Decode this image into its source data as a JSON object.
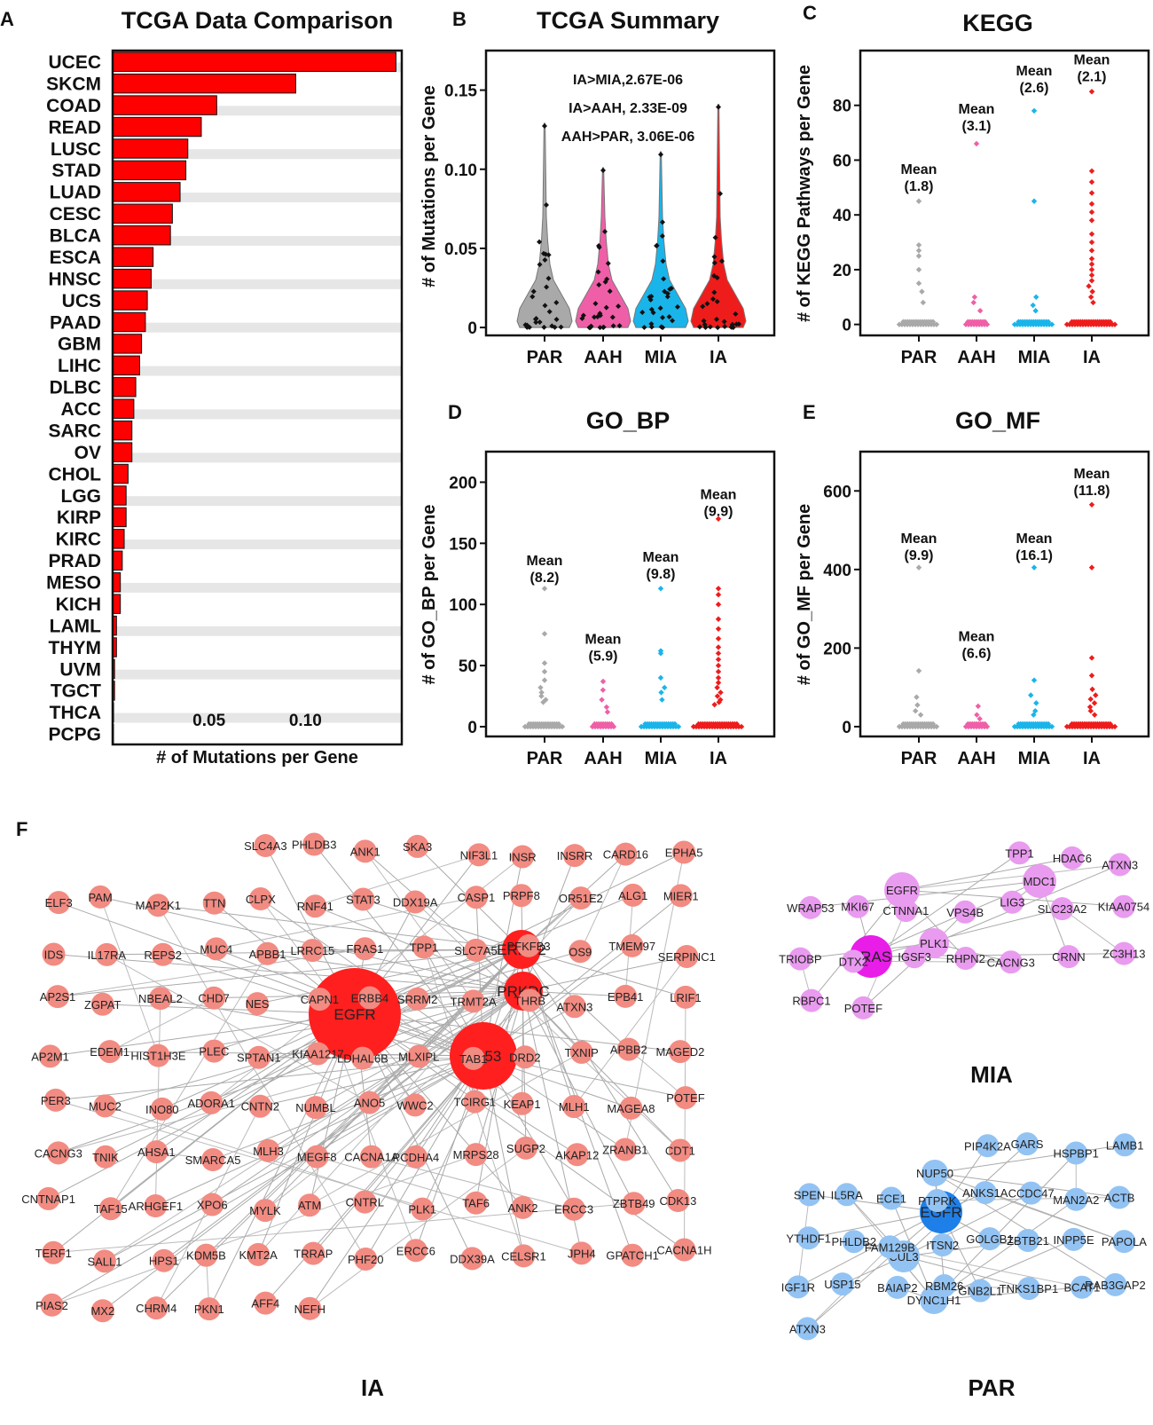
{
  "panel_labels": {
    "a": "A",
    "b": "B",
    "c": "C",
    "d": "D",
    "e": "E",
    "f": "F"
  },
  "group_colors": {
    "PAR": "#a9a9a9",
    "AAH": "#ef5fa7",
    "MIA": "#19b5ea",
    "IA": "#ef1c1c"
  },
  "chart_data": [
    {
      "id": "A",
      "type": "bar",
      "orientation": "horizontal",
      "title": "TCGA Data Comparison",
      "xlabel": "# of Mutations per Gene",
      "categories": [
        "UCEC",
        "SKCM",
        "COAD",
        "READ",
        "LUSC",
        "STAD",
        "LUAD",
        "CESC",
        "BLCA",
        "ESCA",
        "HNSC",
        "UCS",
        "PAAD",
        "GBM",
        "LIHC",
        "DLBC",
        "ACC",
        "SARC",
        "OV",
        "CHOL",
        "LGG",
        "KIRP",
        "KIRC",
        "PRAD",
        "MESO",
        "KICH",
        "LAML",
        "THYM",
        "UVM",
        "TGCT",
        "THCA",
        "PCPG"
      ],
      "values": [
        0.147,
        0.095,
        0.054,
        0.046,
        0.039,
        0.038,
        0.035,
        0.031,
        0.03,
        0.021,
        0.02,
        0.018,
        0.017,
        0.015,
        0.014,
        0.012,
        0.011,
        0.01,
        0.01,
        0.008,
        0.007,
        0.007,
        0.006,
        0.005,
        0.004,
        0.004,
        0.002,
        0.002,
        0.001,
        0.001,
        0.0005,
        0.0003
      ],
      "xticks": [
        0.05,
        0.1
      ],
      "xtick_labels": [
        "0.05",
        "0.10"
      ],
      "xlim": [
        0,
        0.15
      ],
      "bar_color": "#ff0000"
    },
    {
      "id": "B",
      "type": "violin",
      "title": "TCGA Summary",
      "ylabel": "# of Mutations per Gene",
      "categories": [
        "PAR",
        "AAH",
        "MIA",
        "IA"
      ],
      "yticks": [
        0,
        0.05,
        0.1,
        0.15
      ],
      "ytick_labels": [
        "0",
        "0.05",
        "0.10",
        "0.15"
      ],
      "ylim": [
        -0.005,
        0.175
      ],
      "max": [
        0.129,
        0.101,
        0.111,
        0.141
      ],
      "annotations": [
        "IA>MIA,2.67E-06",
        "IA>AAH, 2.33E-09",
        "AAH>PAR, 3.06E-06"
      ]
    },
    {
      "id": "C",
      "type": "scatter",
      "title": "KEGG",
      "ylabel": "# of KEGG Pathways per Gene",
      "categories": [
        "PAR",
        "AAH",
        "MIA",
        "IA"
      ],
      "yticks": [
        0,
        20,
        40,
        60,
        80
      ],
      "ytick_labels": [
        "0",
        "20",
        "40",
        "60",
        "80"
      ],
      "ylim": [
        -4,
        100
      ],
      "means": [
        {
          "label": "Mean",
          "value": "(1.8)"
        },
        {
          "label": "Mean",
          "value": "(3.1)"
        },
        {
          "label": "Mean",
          "value": "(2.6)"
        },
        {
          "label": "Mean",
          "value": "(2.1)"
        }
      ],
      "outliers": [
        [
          45,
          29,
          27,
          25,
          20,
          15,
          12,
          8
        ],
        [
          66,
          10,
          8,
          5
        ],
        [
          78,
          45,
          10,
          7,
          5
        ],
        [
          85,
          56,
          52,
          48,
          44,
          41,
          38,
          33,
          30,
          27,
          24,
          22,
          20,
          18,
          16,
          14,
          12,
          10,
          8
        ]
      ],
      "mean_label_pos": [
        55,
        77,
        91,
        95
      ]
    },
    {
      "id": "D",
      "type": "scatter",
      "title": "GO_BP",
      "ylabel": "# of GO_BP per Gene",
      "categories": [
        "PAR",
        "AAH",
        "MIA",
        "IA"
      ],
      "yticks": [
        0,
        50,
        100,
        150,
        200
      ],
      "ytick_labels": [
        "0",
        "50",
        "100",
        "150",
        "200"
      ],
      "ylim": [
        -8,
        225
      ],
      "means": [
        {
          "label": "Mean",
          "value": "(8.2)"
        },
        {
          "label": "Mean",
          "value": "(5.9)"
        },
        {
          "label": "Mean",
          "value": "(9.8)"
        },
        {
          "label": "Mean",
          "value": "(9.9)"
        }
      ],
      "outliers": [
        [
          113,
          76,
          52,
          45,
          38,
          32,
          28,
          25,
          22,
          20
        ],
        [
          37,
          30,
          22,
          16,
          12
        ],
        [
          113,
          62,
          60,
          40,
          32,
          28,
          22
        ],
        [
          170,
          113,
          108,
          100,
          88,
          80,
          72,
          65,
          60,
          55,
          50,
          45,
          40,
          36,
          32,
          28,
          25,
          22,
          20,
          18
        ]
      ],
      "mean_label_pos": [
        132,
        68,
        135,
        186
      ]
    },
    {
      "id": "E",
      "type": "scatter",
      "title": "GO_MF",
      "ylabel": "# of GO_MF per Gene",
      "categories": [
        "PAR",
        "AAH",
        "MIA",
        "IA"
      ],
      "yticks": [
        0,
        200,
        400,
        600
      ],
      "ytick_labels": [
        "0",
        "200",
        "400",
        "600"
      ],
      "ylim": [
        -25,
        700
      ],
      "means": [
        {
          "label": "Mean",
          "value": "(9.9)"
        },
        {
          "label": "Mean",
          "value": "(6.6)"
        },
        {
          "label": "Mean",
          "value": "(16.1)"
        },
        {
          "label": "Mean",
          "value": "(11.8)"
        }
      ],
      "outliers": [
        [
          405,
          142,
          75,
          55,
          40,
          30
        ],
        [
          52,
          30,
          20
        ],
        [
          405,
          118,
          80,
          60,
          40,
          30
        ],
        [
          565,
          405,
          175,
          130,
          95,
          80,
          70,
          60,
          50,
          40,
          30
        ]
      ],
      "mean_label_pos": [
        467,
        218,
        467,
        632
      ]
    }
  ],
  "networks": [
    {
      "id": "IA",
      "label": "IA",
      "color": "#f28b82",
      "hub_color": "#ff1f1f",
      "nodes": [
        "EGFR",
        "TP53",
        "PRKDC",
        "ERBB2",
        "SLC4A3",
        "PHLDB3",
        "ANK1",
        "SKA3",
        "NIF3L1",
        "INSR",
        "INSRR",
        "CARD16",
        "EPHA5",
        "ELF3",
        "PAM",
        "MAP2K1",
        "TTN",
        "CLPX",
        "RNF41",
        "STAT3",
        "DDX19A",
        "CASP1",
        "PRPF8",
        "OR51E2",
        "ALG1",
        "MIER1",
        "IDS",
        "IL17RA",
        "REPS2",
        "MUC4",
        "APBB1",
        "LRRC15",
        "FRAS1",
        "TPP1",
        "SLC7A5",
        "PFKFB3",
        "OS9",
        "TMEM97",
        "SERPINC1",
        "AP2S1",
        "ZGPAT",
        "NBEAL2",
        "CHD7",
        "NES",
        "CAPN1",
        "ERBB4",
        "SRRM2",
        "TRMT2A",
        "THRB",
        "ATXN3",
        "EPB41",
        "LRIF1",
        "AP2M1",
        "EDEM1",
        "HIST1H3E",
        "PLEC",
        "SPTAN1",
        "KIAA1217",
        "LDHAL6B",
        "MLXIPL",
        "TAB1",
        "DRD2",
        "TXNIP",
        "APBB2",
        "MAGED2",
        "PER3",
        "MUC2",
        "INO80",
        "ADORA1",
        "CNTN2",
        "NUMBL",
        "ANO5",
        "WWC2",
        "TCIRG1",
        "KEAP1",
        "MLH1",
        "MAGEA8",
        "POTEF",
        "CACNG3",
        "TNIK",
        "AHSA1",
        "SMARCA5",
        "MLH3",
        "MEGF8",
        "CACNA1A",
        "PCDHA4",
        "MRPS28",
        "SUGP2",
        "AKAP12",
        "ZRANB1",
        "CDT1",
        "CNTNAP1",
        "TAF15",
        "ARHGEF1",
        "XPO6",
        "MYLK",
        "ATM",
        "CNTRL",
        "PLK1",
        "TAF6",
        "ANK2",
        "ERCC3",
        "ZBTB49",
        "CDK13",
        "TERF1",
        "SALL1",
        "HPS1",
        "KDM5B",
        "KMT2A",
        "TRRAP",
        "PHF20",
        "ERCC6",
        "DDX39A",
        "CELSR1",
        "JPH4",
        "GPATCH1",
        "CACNA1H",
        "PIAS2",
        "MX2",
        "CHRM4",
        "PKN1",
        "AFF4",
        "NEFH"
      ]
    },
    {
      "id": "MIA",
      "label": "MIA",
      "color": "#e99bef",
      "hub_color": "#e81ee8",
      "nodes": [
        "KRAS",
        "EGFR",
        "PLK1",
        "MDC1",
        "TPP1",
        "HDAC6",
        "ATXN3",
        "WRAP53",
        "MKI67",
        "CTNNA1",
        "VPS4B",
        "LIG3",
        "SLC23A2",
        "KIAA0754",
        "TRIOBP",
        "DTX2",
        "IGSF3",
        "RHPN2",
        "CACNG3",
        "CRNN",
        "ZC3H13",
        "RBPC1",
        "POTEF"
      ]
    },
    {
      "id": "PAR",
      "label": "PAR",
      "color": "#93c3f3",
      "hub_color": "#1f7fe8",
      "nodes": [
        "EGFR",
        "CUL3",
        "DYNC1H1",
        "NUP50",
        "PIP4K2A",
        "GARS",
        "HSPBP1",
        "LAMB1",
        "SPEN",
        "IL5RA",
        "ECE1",
        "PTPRK",
        "ANKS1A",
        "CCDC47",
        "MAN2A2",
        "ACTB",
        "YTHDF1",
        "PHLDB2",
        "FAM129B",
        "ITSN2",
        "GOLGB1",
        "ZBTB21",
        "INPP5E",
        "PAPOLA",
        "IGF1R",
        "USP15",
        "BAIAP2",
        "RBM26",
        "GNB2L1",
        "TNKS1BP1",
        "BCAT1",
        "RAB3GAP2",
        "ATXN3"
      ]
    }
  ]
}
